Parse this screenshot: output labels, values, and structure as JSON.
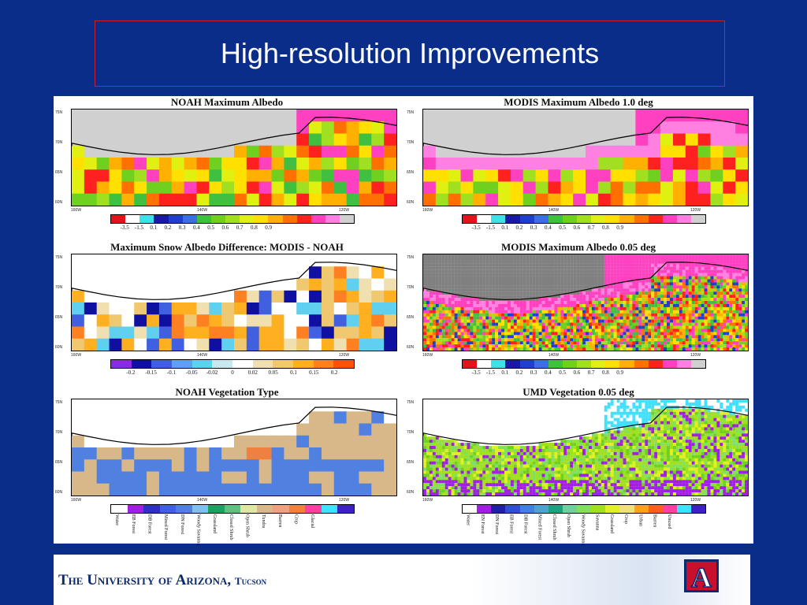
{
  "slide": {
    "title": "High-resolution Improvements"
  },
  "panels": [
    {
      "title": "NOAH Maximum Albedo",
      "lat_labels": [
        "75N",
        "70N",
        "65N",
        "60N"
      ],
      "lon_labels": [
        "160W",
        "140W",
        "120W"
      ],
      "colorbar_ticks": [
        "-3.5",
        "-1.5",
        "0.1",
        "0.2",
        "0.3",
        "0.4",
        "0.5",
        "0.6",
        "0.7",
        "0.8",
        "0.9"
      ]
    },
    {
      "title": "MODIS Maximum Albedo 1.0 deg",
      "lat_labels": [
        "75N",
        "70N",
        "65N",
        "60N"
      ],
      "lon_labels": [
        "160W",
        "140W",
        "120W"
      ],
      "colorbar_ticks": [
        "-3.5",
        "-1.5",
        "0.1",
        "0.2",
        "0.3",
        "0.4",
        "0.5",
        "0.6",
        "0.7",
        "0.8",
        "0.9"
      ]
    },
    {
      "title": "Maximum Snow Albedo Difference: MODIS - NOAH",
      "lat_labels": [
        "75N",
        "70N",
        "65N",
        "60N"
      ],
      "lon_labels": [
        "160W",
        "140W",
        "120W"
      ],
      "colorbar_ticks": [
        "-0.2",
        "-0.15",
        "-0.1",
        "-0.05",
        "-0.02",
        "0",
        "0.02",
        "0.05",
        "0.1",
        "0.15",
        "0.2"
      ]
    },
    {
      "title": "MODIS Maximum Albedo 0.05 deg",
      "lat_labels": [
        "75N",
        "70N",
        "65N",
        "60N"
      ],
      "lon_labels": [
        "160W",
        "140W",
        "120W"
      ],
      "colorbar_ticks": [
        "-3.5",
        "-1.5",
        "0.1",
        "0.2",
        "0.3",
        "0.4",
        "0.5",
        "0.6",
        "0.7",
        "0.8",
        "0.9"
      ]
    },
    {
      "title": "NOAH Vegetation Type",
      "lat_labels": [
        "75N",
        "70N",
        "65N",
        "60N"
      ],
      "lon_labels": [
        "160W",
        "140W",
        "120W"
      ],
      "veg_labels": [
        "Water",
        "EB Forest",
        "DB Forest",
        "Mixed Forest",
        "DN Forest",
        "Woody Savanna",
        "Grassland",
        "Closed Shrub",
        "Open Shrub",
        "Tundra",
        "Barren",
        "Crop",
        "Glacial"
      ]
    },
    {
      "title": "UMD Vegetation 0.05 deg",
      "lat_labels": [
        "75N",
        "70N",
        "65N",
        "60N"
      ],
      "lon_labels": [
        "160W",
        "140W",
        "120W"
      ],
      "veg_labels": [
        "Water",
        "EN Forest",
        "DN Forest",
        "EB Forest",
        "DB Forest",
        "Mixed Forest",
        "Closed Shrub",
        "Open Shrub",
        "Woody Savanna",
        "Savanna",
        "Grassland",
        "Crop",
        "Urban",
        "Barren",
        "Unused"
      ]
    }
  ],
  "palettes": {
    "albedo": [
      "#e8101a",
      "#ffffff",
      "#40e0e8",
      "#1a1aa0",
      "#2040c8",
      "#3a70e0",
      "#40c040",
      "#70d020",
      "#a0e020",
      "#e0f010",
      "#ffe000",
      "#ffb000",
      "#ff7000",
      "#ff2020",
      "#ff40c0",
      "#ff80e0",
      "#d0d0d0"
    ],
    "difference": [
      "#8a2be2",
      "#1010a0",
      "#4060e0",
      "#60a0f0",
      "#60d0f0",
      "#c8e8f0",
      "#ffffff",
      "#f0e0b0",
      "#f0c870",
      "#ffb020",
      "#ff8020",
      "#ff5010"
    ],
    "noah_veg": [
      "#ffffff",
      "#a020e0",
      "#3030c0",
      "#4060e0",
      "#5080e0",
      "#80c0f0",
      "#20a060",
      "#60c080",
      "#e0e8a0",
      "#d8b888",
      "#f0a080",
      "#f08040",
      "#ff40a0",
      "#40e0ff",
      "#4020c0"
    ],
    "umd_veg": [
      "#ffffff",
      "#a020e0",
      "#2020a0",
      "#3050d0",
      "#4080e0",
      "#50a0d0",
      "#20a080",
      "#70d0a0",
      "#80e060",
      "#a0e020",
      "#e0f020",
      "#f0e080",
      "#ffa020",
      "#ff6020",
      "#ff40a0",
      "#40e0ff",
      "#4020c0"
    ]
  },
  "footer": {
    "university": "The University of Arizona,",
    "campus": "Tucson",
    "logo_letter": "A"
  }
}
